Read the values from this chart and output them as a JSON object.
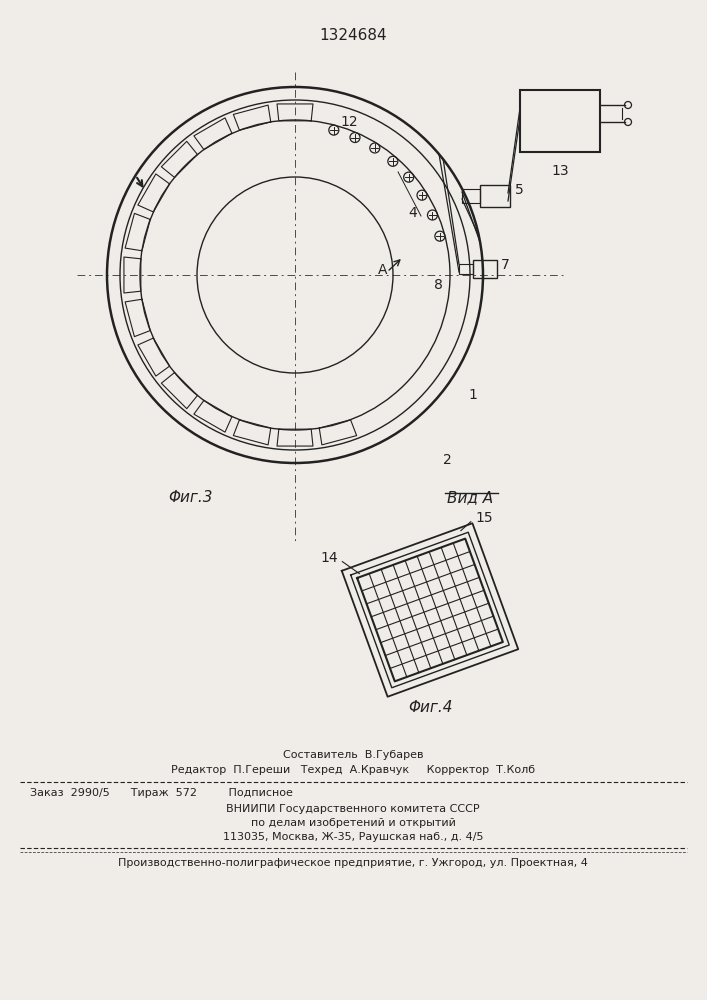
{
  "patent_number": "1324684",
  "bg_color": "#f0ede8",
  "line_color": "#222222",
  "fig3_label": "Φиг.3",
  "vid_a_label": "Вид A",
  "fig4_label": "Φиг.4",
  "bottom_text_1": "Составитель  В.Губарев",
  "bottom_text_2": "Редактор  П.Гереши   Техред  А.Кравчук     Корректор  Т.Колб",
  "bottom_text_3": "Заказ  2990/5      Тираж  572         Подписное",
  "bottom_text_4": "ВНИИПИ Государственного комитета СССР",
  "bottom_text_5": "по делам изобретений и открытий",
  "bottom_text_6": "113035, Москва, Ж-35, Раушская наб., д. 4/5",
  "bottom_text_7": "Производственно-полиграфическое предприятие, г. Ужгород, ул. Проектная, 4"
}
